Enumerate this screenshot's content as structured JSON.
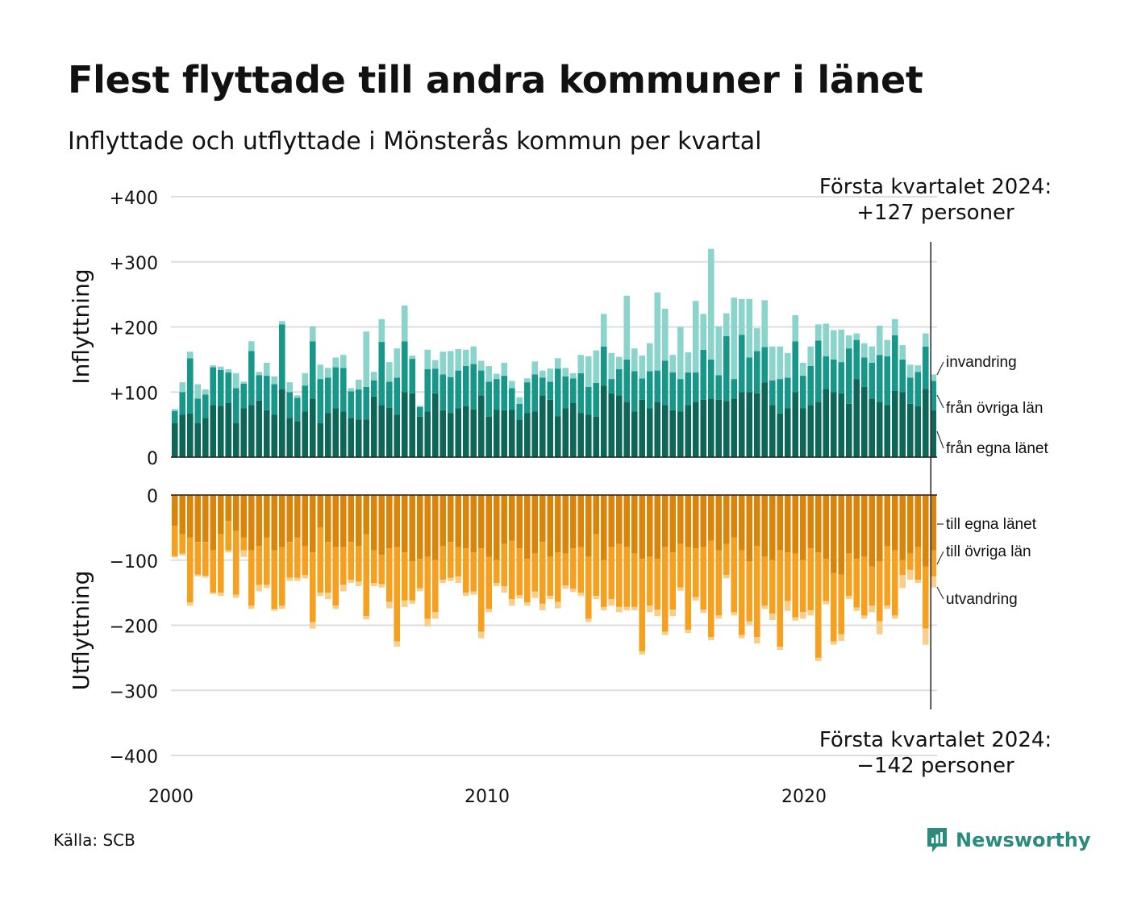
{
  "title": "Flest flyttade till andra kommuner i länet",
  "subtitle": "Inflyttade och utflyttade i Mönsterås kommun per kvartal",
  "source": "Källa: SCB",
  "brand": {
    "name": "Newsworthy",
    "icon": "newsworthy-logo-icon",
    "color": "#2a8c7e"
  },
  "annotations": {
    "top": {
      "line1": "Första kvartalet 2024:",
      "line2": "+127 personer"
    },
    "bottom": {
      "line1": "Första kvartalet 2024:",
      "line2": "−142 personer"
    }
  },
  "colors": {
    "egna_in": "#0e6659",
    "ovriga_in": "#17968a",
    "invandring": "#8ad4cc",
    "egna_ut": "#d9850a",
    "ovriga_ut": "#f5a01e",
    "utvandring": "#f8cf8a",
    "grid": "#dddddd"
  },
  "chart_data": {
    "type": "bar",
    "stacked": true,
    "x_start": "2000 Q1",
    "x_end": "2024 Q1",
    "x_ticks": [
      "2000",
      "2010",
      "2020"
    ],
    "panels": [
      {
        "ylabel": "Inflyttning",
        "ylim": [
          0,
          400
        ],
        "yticks": [
          "0",
          "+100",
          "+200",
          "+300",
          "+400"
        ],
        "tick_values": [
          0,
          100,
          200,
          300,
          400
        ],
        "series": [
          {
            "name": "från egna länet",
            "key": "egna_in",
            "values": [
              52,
              65,
              67,
              52,
              60,
              80,
              79,
              83,
              52,
              75,
              80,
              87,
              72,
              65,
              104,
              60,
              55,
              70,
              90,
              52,
              68,
              75,
              70,
              60,
              58,
              58,
              93,
              80,
              76,
              65,
              100,
              98,
              62,
              70,
              98,
              72,
              68,
              75,
              78,
              73,
              95,
              62,
              73,
              72,
              73,
              57,
              68,
              70,
              95,
              88,
              63,
              75,
              83,
              68,
              65,
              62,
              110,
              98,
              95,
              85,
              70,
              88,
              75,
              85,
              80,
              72,
              70,
              80,
              85,
              88,
              90,
              88,
              86,
              90,
              100,
              100,
              98,
              115,
              80,
              67,
              75,
              100,
              75,
              80,
              85,
              105,
              100,
              98,
              82,
              120,
              108,
              90,
              85,
              80,
              102,
              100,
              82,
              78,
              105,
              72
            ]
          },
          {
            "name": "från övriga län",
            "key": "ovriga_in",
            "values": [
              19,
              35,
              85,
              38,
              36,
              58,
              55,
              47,
              54,
              38,
              83,
              39,
              53,
              47,
              100,
              40,
              36,
              40,
              88,
              68,
              54,
              63,
              67,
              41,
              46,
              50,
              25,
              97,
              40,
              57,
              78,
              53,
              15,
              65,
              38,
              55,
              55,
              58,
              62,
              70,
              38,
              54,
              47,
              53,
              33,
              25,
              47,
              57,
              27,
              28,
              73,
              49,
              38,
              61,
              43,
              52,
              60,
              22,
              40,
              65,
              62,
              33,
              57,
              48,
              68,
              58,
              50,
              50,
              45,
              77,
              60,
              38,
              100,
              30,
              88,
              53,
              65,
              54,
              38,
              53,
              47,
              78,
              50,
              60,
              94,
              50,
              50,
              48,
              85,
              60,
              45,
              55,
              72,
              75,
              85,
              50,
              40,
              53,
              65,
              45
            ]
          },
          {
            "name": "invandring",
            "key": "invandring",
            "values": [
              3,
              15,
              10,
              22,
              8,
              3,
              5,
              5,
              23,
              3,
              15,
              5,
              20,
              12,
              5,
              15,
              4,
              19,
              23,
              22,
              15,
              15,
              20,
              5,
              15,
              85,
              13,
              35,
              30,
              45,
              55,
              5,
              2,
              30,
              13,
              35,
              40,
              33,
              25,
              27,
              15,
              24,
              8,
              20,
              11,
              10,
              6,
              20,
              11,
              20,
              16,
              13,
              8,
              28,
              47,
              50,
              50,
              40,
              19,
              98,
              35,
              35,
              43,
              120,
              80,
              27,
              80,
              31,
              110,
              55,
              170,
              75,
              35,
              125,
              55,
              90,
              35,
              72,
              52,
              50,
              38,
              40,
              20,
              30,
              25,
              50,
              45,
              50,
              20,
              10,
              22,
              25,
              45,
              25,
              25,
              22,
              20,
              10,
              20,
              10
            ]
          }
        ]
      },
      {
        "ylabel": "Utflyttning",
        "ylim": [
          -400,
          0
        ],
        "yticks": [
          "−400",
          "−300",
          "−200",
          "−100",
          "0"
        ],
        "tick_values": [
          -400,
          -300,
          -200,
          -100,
          0
        ],
        "series": [
          {
            "name": "till egna länet",
            "key": "egna_ut",
            "values": [
              -47,
              -60,
              -65,
              -72,
              -72,
              -85,
              -60,
              -40,
              -55,
              -65,
              -85,
              -78,
              -65,
              -85,
              -80,
              -72,
              -65,
              -78,
              -88,
              -50,
              -72,
              -80,
              -80,
              -72,
              -78,
              -60,
              -85,
              -92,
              -82,
              -80,
              -88,
              -102,
              -98,
              -95,
              -100,
              -78,
              -72,
              -80,
              -82,
              -88,
              -82,
              -95,
              -100,
              -75,
              -70,
              -82,
              -98,
              -90,
              -72,
              -95,
              -88,
              -90,
              -82,
              -80,
              -95,
              -60,
              -100,
              -80,
              -75,
              -80,
              -90,
              -98,
              -95,
              -98,
              -80,
              -88,
              -75,
              -80,
              -82,
              -80,
              -70,
              -85,
              -75,
              -65,
              -85,
              -102,
              -78,
              -95,
              -100,
              -85,
              -88,
              -90,
              -100,
              -82,
              -88,
              -98,
              -120,
              -122,
              -90,
              -98,
              -95,
              -110,
              -102,
              -78,
              -85,
              -100,
              -90,
              -80,
              -110,
              -85
            ]
          },
          {
            "name": "till övriga län",
            "key": "ovriga_ut",
            "values": [
              -47,
              -30,
              -100,
              -50,
              -52,
              -65,
              -90,
              -45,
              -98,
              -20,
              -85,
              -60,
              -73,
              -90,
              -90,
              -55,
              -62,
              -45,
              -107,
              -100,
              -78,
              -90,
              -58,
              -58,
              -55,
              -126,
              -50,
              -45,
              -82,
              -145,
              -74,
              -60,
              -45,
              -95,
              -80,
              -52,
              -55,
              -45,
              -68,
              -60,
              -128,
              -80,
              -35,
              -65,
              -90,
              -72,
              -67,
              -58,
              -95,
              -60,
              -76,
              -49,
              -62,
              -70,
              -95,
              -95,
              -72,
              -80,
              -97,
              -92,
              -82,
              -142,
              -75,
              -78,
              -130,
              -88,
              -67,
              -127,
              -75,
              -96,
              -148,
              -100,
              -48,
              -115,
              -130,
              -92,
              -140,
              -75,
              -82,
              -148,
              -75,
              -98,
              -80,
              -95,
              -162,
              -65,
              -105,
              -92,
              -65,
              -75,
              -90,
              -60,
              -92,
              -92,
              -100,
              -23,
              -25,
              -50,
              -95,
              -40
            ]
          },
          {
            "name": "utvandring",
            "key": "utvandring",
            "values": [
              -2,
              -3,
              -5,
              -3,
              -3,
              -2,
              -5,
              -3,
              -5,
              -10,
              -5,
              -10,
              -5,
              -3,
              -5,
              -5,
              -5,
              -5,
              -10,
              -5,
              -10,
              -5,
              -10,
              -5,
              -7,
              -5,
              -5,
              -5,
              -10,
              -8,
              -10,
              -5,
              -5,
              -12,
              -10,
              -5,
              -5,
              -10,
              -5,
              -5,
              -10,
              -5,
              -5,
              -10,
              -10,
              -5,
              -5,
              -10,
              -10,
              -5,
              -10,
              -5,
              -5,
              -5,
              -5,
              -5,
              -5,
              -10,
              -8,
              -5,
              -5,
              -5,
              -10,
              -10,
              -5,
              -10,
              -5,
              -5,
              -5,
              -5,
              -5,
              -5,
              -5,
              -5,
              -5,
              -5,
              -10,
              -5,
              -10,
              -5,
              -15,
              -5,
              -10,
              -8,
              -5,
              -5,
              -5,
              -10,
              -5,
              -5,
              -5,
              -10,
              -20,
              -5,
              -5,
              -20,
              -15,
              -5,
              -25,
              -17
            ]
          }
        ]
      }
    ],
    "end_labels": {
      "top": [
        "invandring",
        "från övriga län",
        "från egna länet"
      ],
      "bottom": [
        "till egna länet",
        "till övriga län",
        "utvandring"
      ]
    },
    "annotation_top_value": "+127 personer",
    "annotation_bottom_value": "−142 personer"
  }
}
